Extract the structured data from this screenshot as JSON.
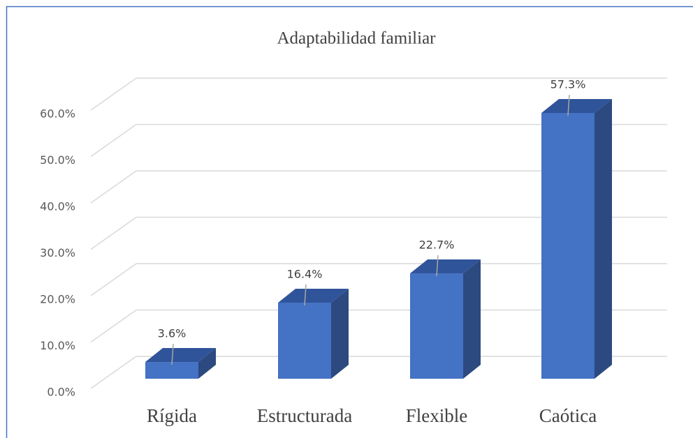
{
  "chart_data": {
    "type": "bar3d",
    "title": "Adaptabilidad familiar",
    "categories": [
      "Rígida",
      "Estructurada",
      "Flexible",
      "Caótica"
    ],
    "values": [
      3.6,
      16.4,
      22.7,
      57.3
    ],
    "value_labels": [
      "3.6%",
      "16.4%",
      "22.7%",
      "57.3%"
    ],
    "color": "#4472c4",
    "ylim": [
      0,
      60
    ],
    "yticks": [
      {
        "value": 0,
        "label": "0.0%"
      },
      {
        "value": 10,
        "label": "10.0%"
      },
      {
        "value": 20,
        "label": "20.0%"
      },
      {
        "value": 30,
        "label": "30.0%"
      },
      {
        "value": 40,
        "label": "40.0%"
      },
      {
        "value": 50,
        "label": "50.0%"
      },
      {
        "value": 60,
        "label": "60.0%"
      }
    ],
    "grid": true
  }
}
